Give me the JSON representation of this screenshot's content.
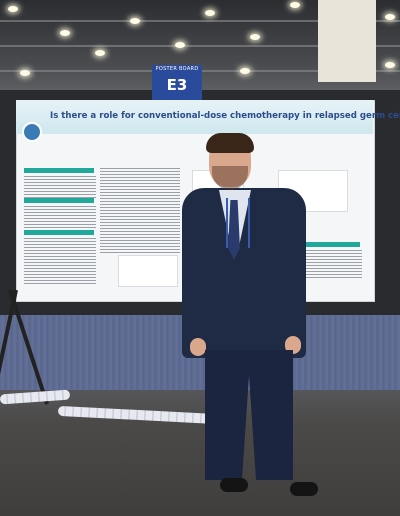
{
  "scene": {
    "board_sign": {
      "top_text": "POSTER BOARD",
      "code": "E3"
    },
    "poster": {
      "title": "Is there a role for conventional-dose chemotherapy in relapsed germ cell tumors?",
      "logo": "hospital-logo"
    },
    "colors": {
      "poster_title": "#2b4d8c",
      "sign_background": "#2a4a9b",
      "section_headers": "#22a89b",
      "jacket": "#1f2a44"
    }
  }
}
